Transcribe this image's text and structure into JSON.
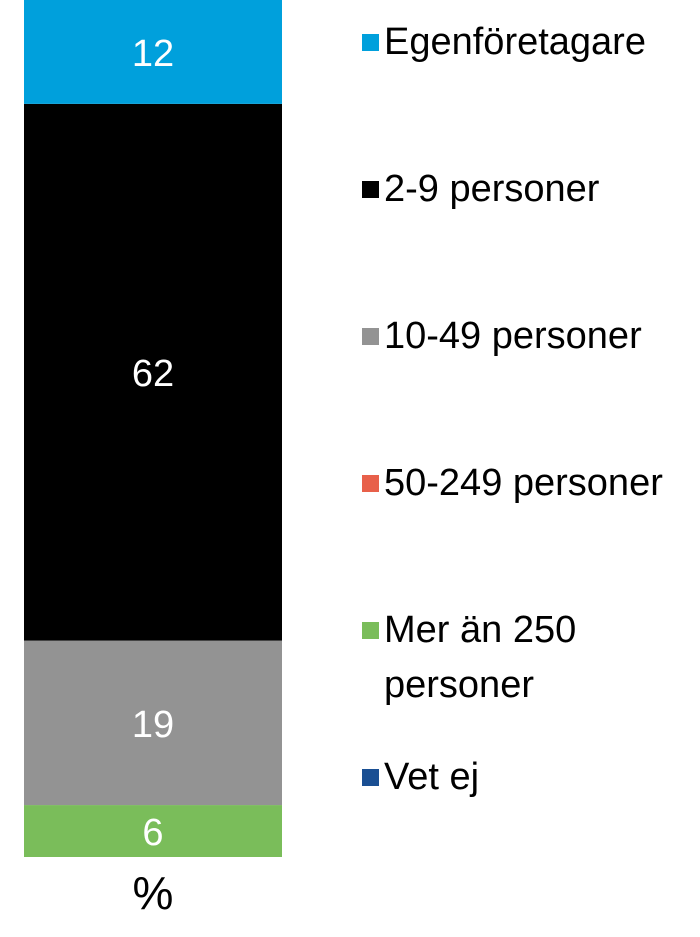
{
  "chart_data": {
    "type": "stacked-bar",
    "categories": [
      "%"
    ],
    "series": [
      {
        "name": "Egenföretagare",
        "color": "#00a0dc",
        "values": [
          12
        ]
      },
      {
        "name": "2-9 personer",
        "color": "#000000",
        "values": [
          62
        ]
      },
      {
        "name": "10-49 personer",
        "color": "#939393",
        "values": [
          19
        ]
      },
      {
        "name": "50-249 personer",
        "color": "#e8604a",
        "values": [
          0
        ]
      },
      {
        "name": "Mer än 250 personer",
        "color": "#7abd5a",
        "values": [
          6
        ]
      },
      {
        "name": "Vet ej",
        "color": "#1a4f93",
        "values": [
          0
        ]
      }
    ],
    "ylim": [
      0,
      99
    ]
  }
}
